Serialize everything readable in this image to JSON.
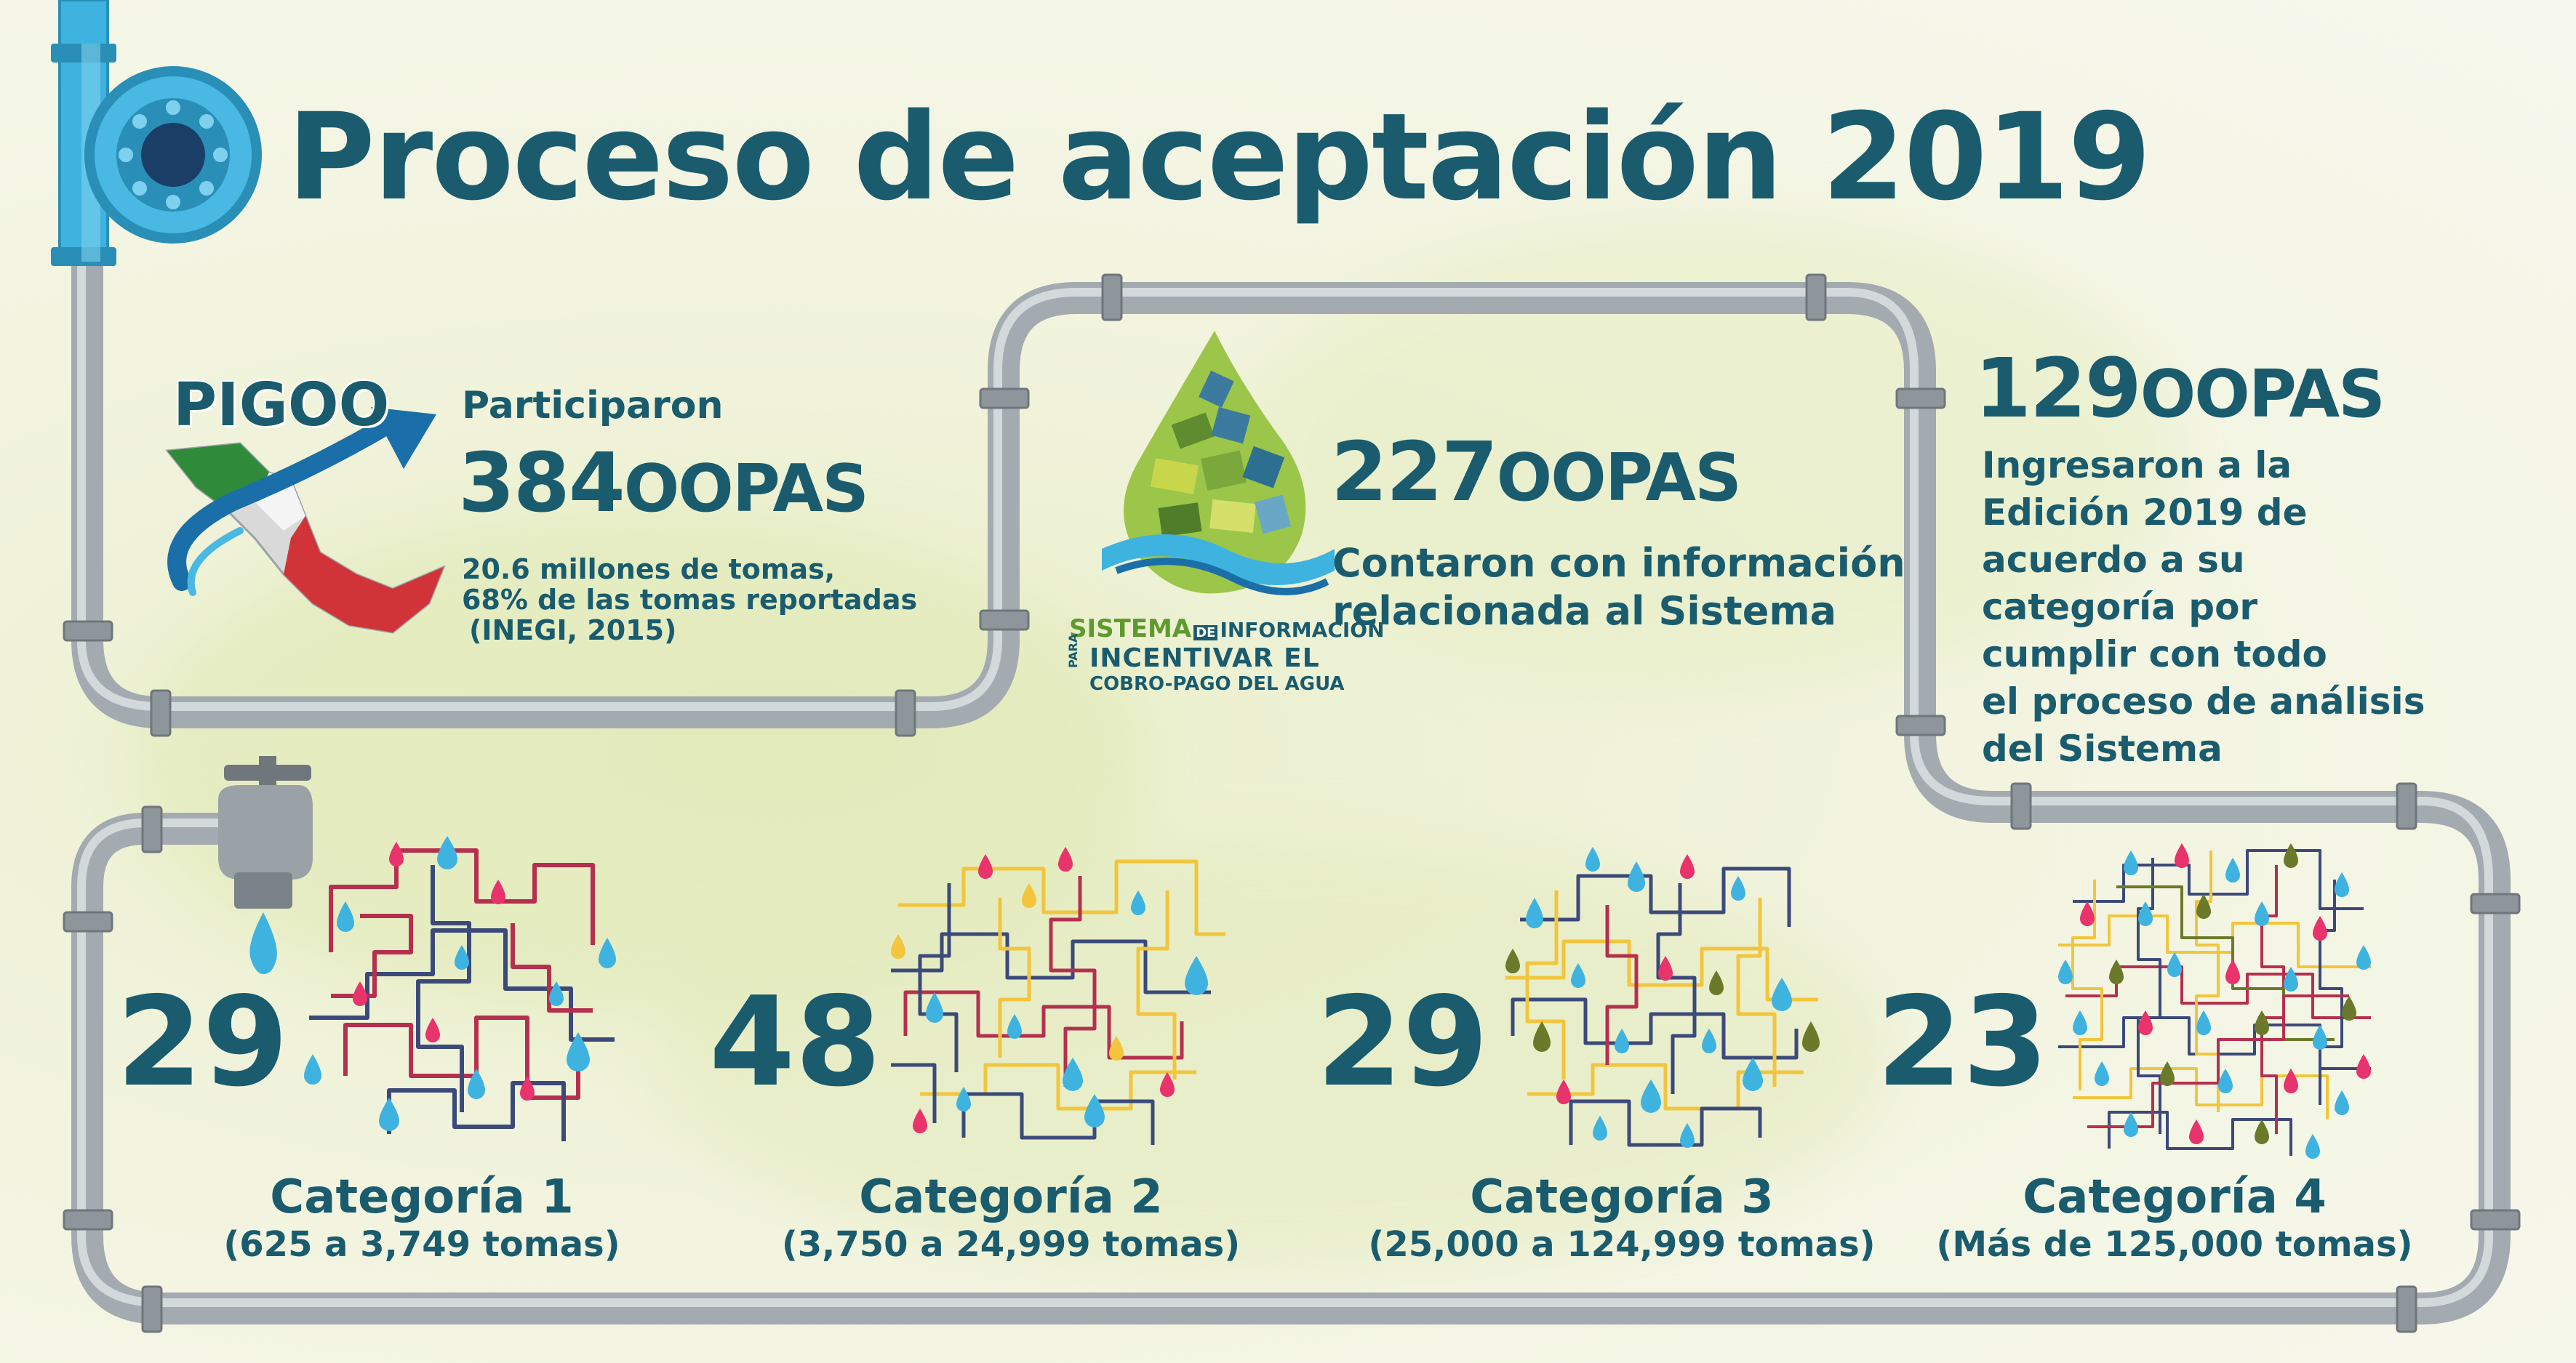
{
  "title": "Proceso de aceptación 2019",
  "pigoo": {
    "logo_text": "PIGOO",
    "participated_label": "Participaron",
    "count": "384",
    "unit": "OOPAS",
    "note_line1": "20.6 millones de tomas,",
    "note_line2": "68% de las tomas reportadas",
    "note_line3": "(INEGI, 2015)"
  },
  "sistema": {
    "logo_line1a": "SISTEMA",
    "logo_line1b": "DE",
    "logo_line1c": "INFORMACIÓN",
    "logo_para": "PARA",
    "logo_line2": "INCENTIVAR EL",
    "logo_line3": "COBRO-PAGO DEL AGUA",
    "count": "227",
    "unit": "OOPAS",
    "desc_line1": "Contaron con información",
    "desc_line2": "relacionada al Sistema"
  },
  "ingresaron": {
    "count": "129",
    "unit": "OOPAS",
    "lines": [
      "Ingresaron a la",
      "Edición 2019 de",
      "acuerdo a su",
      "categoría por",
      "cumplir con todo",
      "el proceso de análisis",
      "del Sistema"
    ]
  },
  "categories": [
    {
      "number": "29",
      "name": "Categoría 1",
      "range": "(625 a 3,749 tomas)"
    },
    {
      "number": "48",
      "name": "Categoría 2",
      "range": "(3,750 a 24,999 tomas)"
    },
    {
      "number": "29",
      "name": "Categoría 3",
      "range": "(25,000 a 124,999 tomas)"
    },
    {
      "number": "23",
      "name": "Categoría 4",
      "range": "(Más de 125,000 tomas)"
    }
  ],
  "colors": {
    "text": "#1a5c6e",
    "pipe": "#b9bfc4",
    "pipe_dark": "#8e969c",
    "blue_pipe": "#3fb3e0",
    "drop_blue": "#3fb3e0",
    "drop_pink": "#e8336c",
    "drop_olive": "#6b7a2a",
    "net_red": "#b5304f",
    "net_navy": "#3c4a7a",
    "net_yellow": "#f2c53d"
  }
}
